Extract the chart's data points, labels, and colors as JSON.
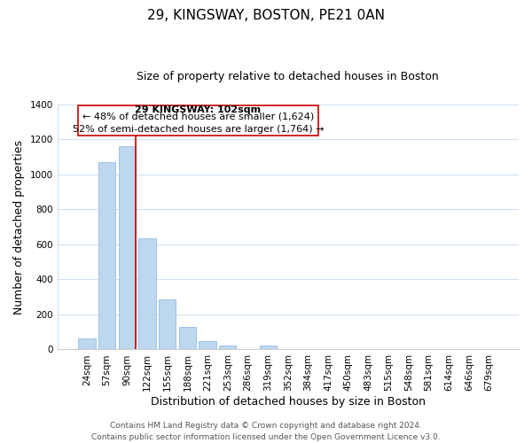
{
  "title": "29, KINGSWAY, BOSTON, PE21 0AN",
  "subtitle": "Size of property relative to detached houses in Boston",
  "xlabel": "Distribution of detached houses by size in Boston",
  "ylabel": "Number of detached properties",
  "categories": [
    "24sqm",
    "57sqm",
    "90sqm",
    "122sqm",
    "155sqm",
    "188sqm",
    "221sqm",
    "253sqm",
    "286sqm",
    "319sqm",
    "352sqm",
    "384sqm",
    "417sqm",
    "450sqm",
    "483sqm",
    "515sqm",
    "548sqm",
    "581sqm",
    "614sqm",
    "646sqm",
    "679sqm"
  ],
  "values": [
    65,
    1070,
    1160,
    635,
    285,
    130,
    48,
    22,
    0,
    22,
    0,
    0,
    0,
    0,
    0,
    0,
    0,
    0,
    0,
    0,
    0
  ],
  "bar_color": "#bdd7ee",
  "bar_edge_color": "#9dc3e6",
  "vline_color": "#cc0000",
  "vline_position": 2.425,
  "annotation_line1": "29 KINGSWAY: 102sqm",
  "annotation_line2": "← 48% of detached houses are smaller (1,624)",
  "annotation_line3": "52% of semi-detached houses are larger (1,764) →",
  "ylim": [
    0,
    1400
  ],
  "yticks": [
    0,
    200,
    400,
    600,
    800,
    1000,
    1200,
    1400
  ],
  "footer_text": "Contains HM Land Registry data © Crown copyright and database right 2024.\nContains public sector information licensed under the Open Government Licence v3.0.",
  "background_color": "#ffffff",
  "grid_color": "#ccdff0",
  "title_fontsize": 11,
  "subtitle_fontsize": 9,
  "axis_label_fontsize": 9,
  "tick_fontsize": 7.5,
  "annotation_fontsize": 8,
  "footer_fontsize": 6.5
}
